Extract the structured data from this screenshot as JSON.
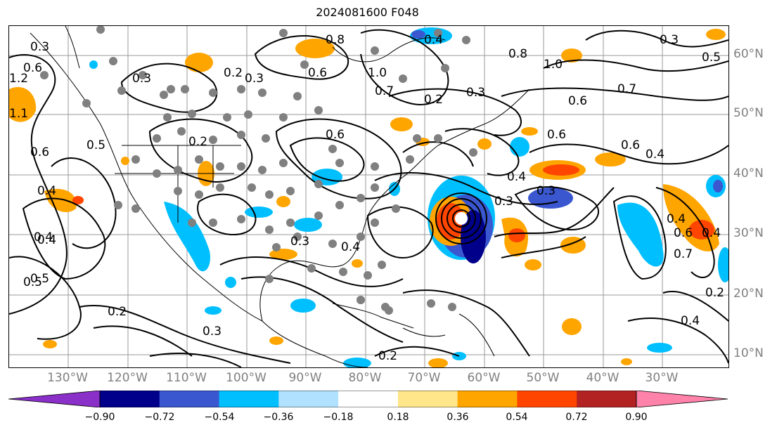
{
  "title": "2024081600 F048",
  "lat_labels": [
    "60°N",
    "50°N",
    "40°N",
    "30°N",
    "20°N",
    "10°N"
  ],
  "lon_labels": [
    "130°W",
    "120°W",
    "110°W",
    "100°W",
    "90°W",
    "80°W",
    "70°W",
    "60°W",
    "50°W",
    "40°W",
    "30°W"
  ],
  "contour_labels": [
    "0.3",
    "1.2",
    "0.6",
    "1.1",
    "0.5",
    "0.4",
    "0.6",
    "0.5",
    "0.4",
    "0.3",
    "0.2",
    "0.3",
    "0.2",
    "0.8",
    "0.6",
    "1.0",
    "0.4",
    "0.7",
    "0.6",
    "0.2",
    "0.3",
    "0.8",
    "1.0",
    "0.7",
    "0.6",
    "0.5",
    "0.3",
    "0.6",
    "0.6",
    "0.4",
    "0.4",
    "0.3",
    "0.3",
    "0.4",
    "0.4",
    "0.3",
    "0.4",
    "0.5",
    "0.2",
    "0.3",
    "0.2",
    "0.6",
    "0.7",
    "0.4",
    "0.2",
    "0.4"
  ],
  "colorbar": {
    "colors": [
      "#8b2fc9",
      "#00008b",
      "#3a57d0",
      "#00bfff",
      "#b0e2ff",
      "#ffffff",
      "#ffe68a",
      "#ffa500",
      "#ff4500",
      "#b22222",
      "#ff82ab"
    ],
    "ticks": [
      "−0.90",
      "−0.72",
      "−0.54",
      "−0.36",
      "−0.18",
      "0.18",
      "0.36",
      "0.54",
      "0.72",
      "0.90"
    ]
  }
}
